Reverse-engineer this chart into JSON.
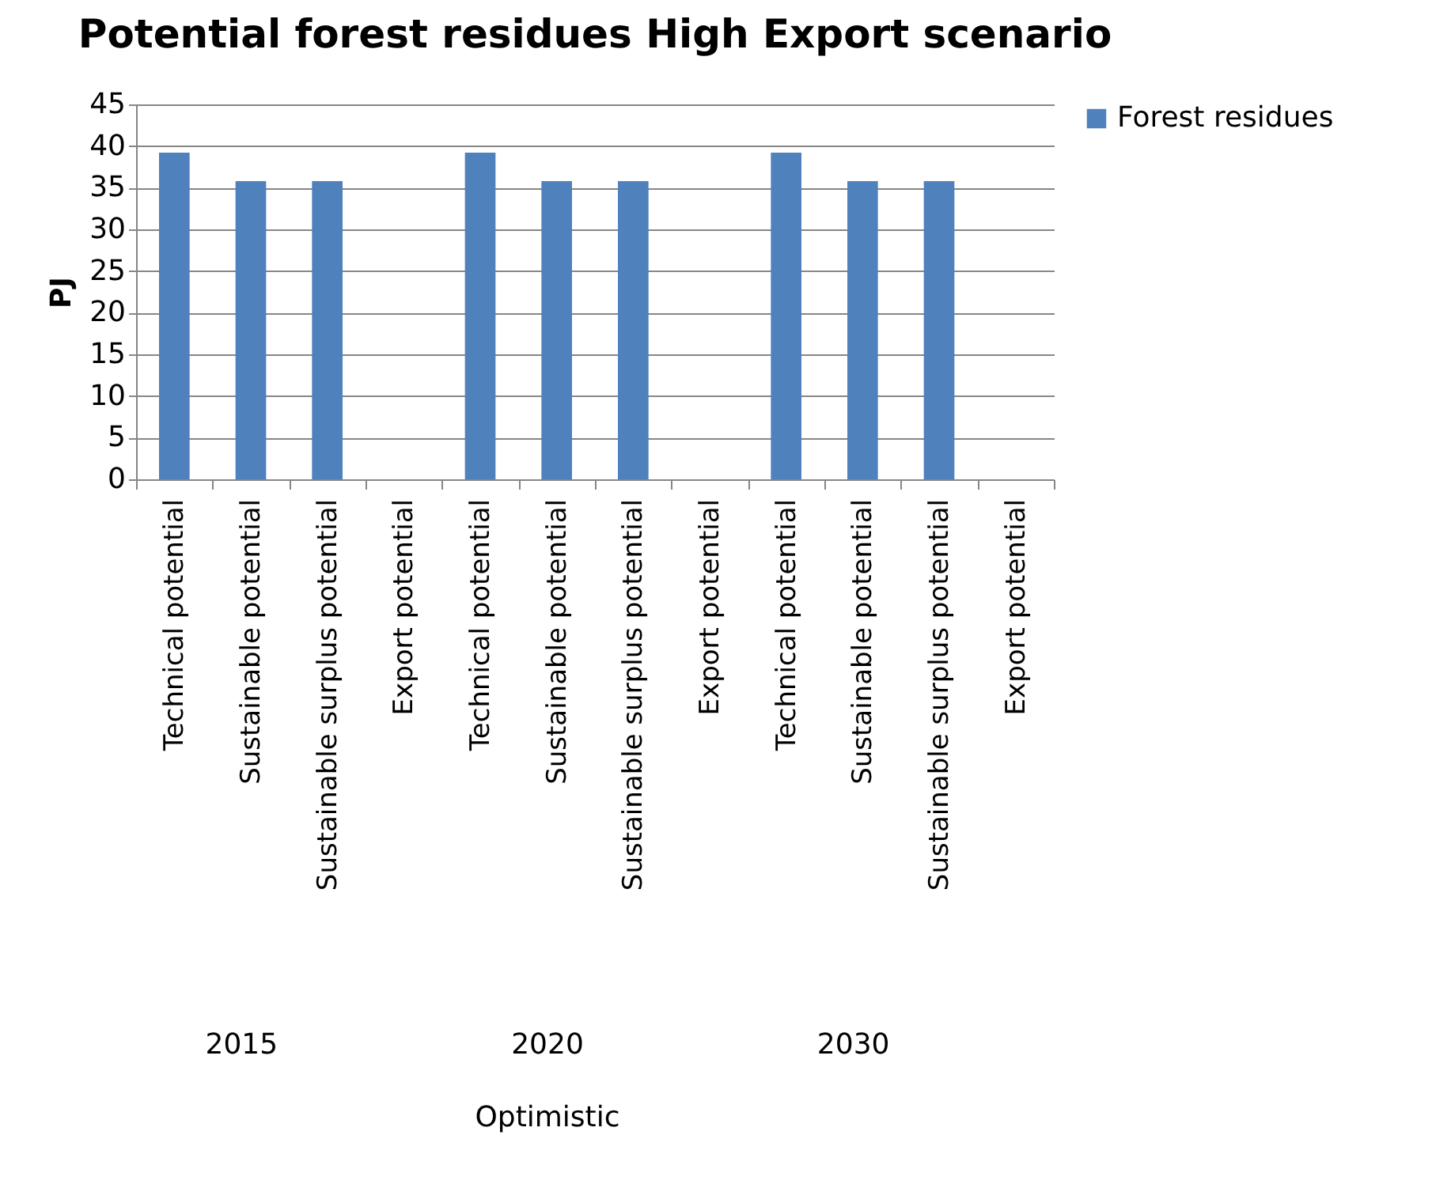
{
  "chart_data": {
    "type": "bar",
    "title": "Potential forest residues High Export scenario",
    "ylabel": "PJ",
    "categories": [
      "Technical potential",
      "Sustainable potential",
      "Sustainable surplus potential",
      "Export potential",
      "Technical potential",
      "Sustainable potential",
      "Sustainable surplus potential",
      "Export potential",
      "Technical potential",
      "Sustainable potential",
      "Sustainable surplus potential",
      "Export potential"
    ],
    "series": [
      {
        "name": "Forest residues",
        "color": "#4f81bd",
        "values": [
          39.2,
          35.8,
          35.8,
          null,
          39.2,
          35.8,
          35.8,
          null,
          39.2,
          35.8,
          35.8,
          null
        ]
      }
    ],
    "ylim": [
      0,
      45
    ],
    "yticks": [
      0,
      5,
      10,
      15,
      20,
      25,
      30,
      35,
      40,
      45
    ],
    "grid": "y",
    "legend": "right",
    "annotations": [
      "2015",
      "2020",
      "2030",
      "Optimistic"
    ]
  }
}
